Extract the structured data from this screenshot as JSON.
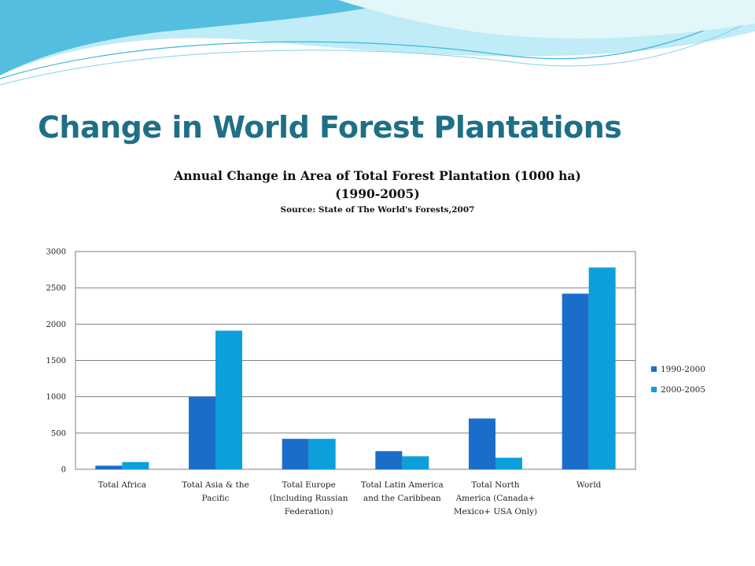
{
  "slide": {
    "title": "Change in World Forest Plantations"
  },
  "colors": {
    "title": "#1f6f86",
    "series_1": "#1a6ec9",
    "series_2": "#0d9fdb",
    "wave_light": "#a9e6f4",
    "wave_dark": "#3fb6dc"
  },
  "chart_data": {
    "type": "bar",
    "title_line1": "Annual Change in Area of Total Forest Plantation (1000 ha)",
    "title_line2": "(1990-2005)",
    "source": "Source: State of The World's Forests,2007",
    "xlabel": "",
    "ylabel": "",
    "ylim": [
      0,
      3000
    ],
    "yticks": [
      "0",
      "500",
      "1000",
      "1500",
      "2000",
      "2500",
      "3000"
    ],
    "grid": true,
    "legend_position": "right",
    "categories": [
      [
        "Total Africa"
      ],
      [
        "Total Asia & the",
        "Pacific"
      ],
      [
        "Total Europe",
        "(Including Russian",
        "Federation)"
      ],
      [
        "Total Latin America",
        "and the Caribbean"
      ],
      [
        "Total North",
        "America (Canada+",
        "Mexico+ USA Only)"
      ],
      [
        "World"
      ]
    ],
    "series": [
      {
        "name": "1990-2000",
        "values": [
          50,
          1000,
          420,
          250,
          700,
          2420
        ]
      },
      {
        "name": "2000-2005",
        "values": [
          100,
          1910,
          420,
          180,
          160,
          2780
        ]
      }
    ]
  }
}
